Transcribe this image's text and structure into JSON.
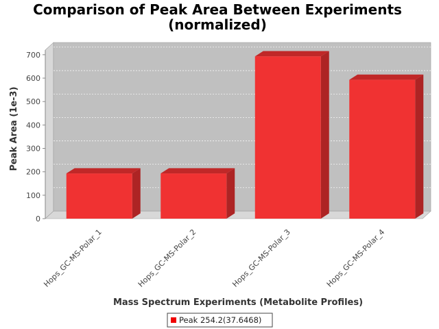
{
  "chart_data": {
    "type": "bar",
    "title": "Comparison of Peak Area Between Experiments",
    "subtitle": "(normalized)",
    "xlabel": "Mass Spectrum Experiments (Metabolite Profiles)",
    "ylabel": "Peak Area (1e-3)",
    "categories": [
      "Hops_GC-MS-Polar_1",
      "Hops_GC-MS-Polar_2",
      "Hops_GC-MS-Polar_3",
      "Hops_GC-MS-Polar_4"
    ],
    "series": [
      {
        "name": "Peak 254.2(37.6468)",
        "values": [
          193,
          193,
          693,
          593
        ],
        "color": "#f03232"
      }
    ],
    "ylim": [
      0,
      720
    ],
    "yticks": [
      0,
      100,
      200,
      300,
      400,
      500,
      600,
      700
    ],
    "grid": true,
    "legend": "bottom",
    "plot_background": "#c0c0c0"
  }
}
